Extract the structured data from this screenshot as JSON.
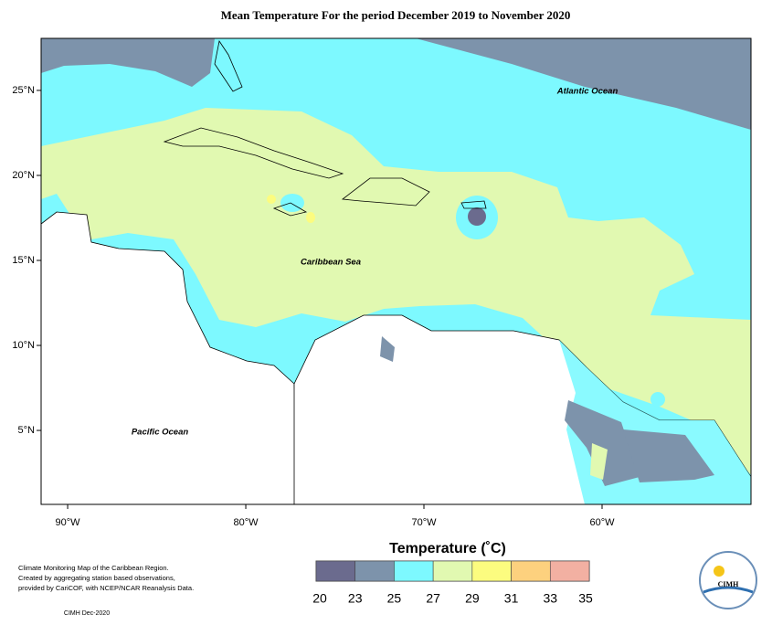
{
  "title": "Mean Temperature For the period December 2019 to November 2020",
  "map": {
    "lon_range": [
      -91.49,
      -51.64
    ],
    "lat_range": [
      0.65,
      28.06
    ],
    "lon_ticks": [
      {
        "value": -90,
        "label": "90°W"
      },
      {
        "value": -80,
        "label": "80°W"
      },
      {
        "value": -70,
        "label": "70°W"
      },
      {
        "value": -60,
        "label": "60°W"
      }
    ],
    "lat_ticks": [
      {
        "value": 25,
        "label": "25°N"
      },
      {
        "value": 20,
        "label": "20°N"
      },
      {
        "value": 15,
        "label": "15°N"
      },
      {
        "value": 10,
        "label": "10°N"
      },
      {
        "value": 5,
        "label": "5°N"
      }
    ],
    "labels": [
      "Atlantic Ocean",
      "Caribbean Sea",
      "Pacific Ocean"
    ]
  },
  "legend": {
    "title": "Temperature (˚C)",
    "ticks": [
      20,
      23,
      25,
      27,
      29,
      31,
      33,
      35
    ],
    "colors": [
      "#6b6b8e",
      "#7d93ab",
      "#7df9ff",
      "#e1f9b1",
      "#fcfc7f",
      "#fdd17e",
      "#f2b0a2"
    ]
  },
  "notes": [
    "Climate Monitoring Map of the Caribbean Region.",
    "Created by aggregating station based observations,",
    "provided by CariCOF, with NCEP/NCAR Reanalysis Data."
  ],
  "credit": "CIMH Dec-2020",
  "logo": "CIMH"
}
